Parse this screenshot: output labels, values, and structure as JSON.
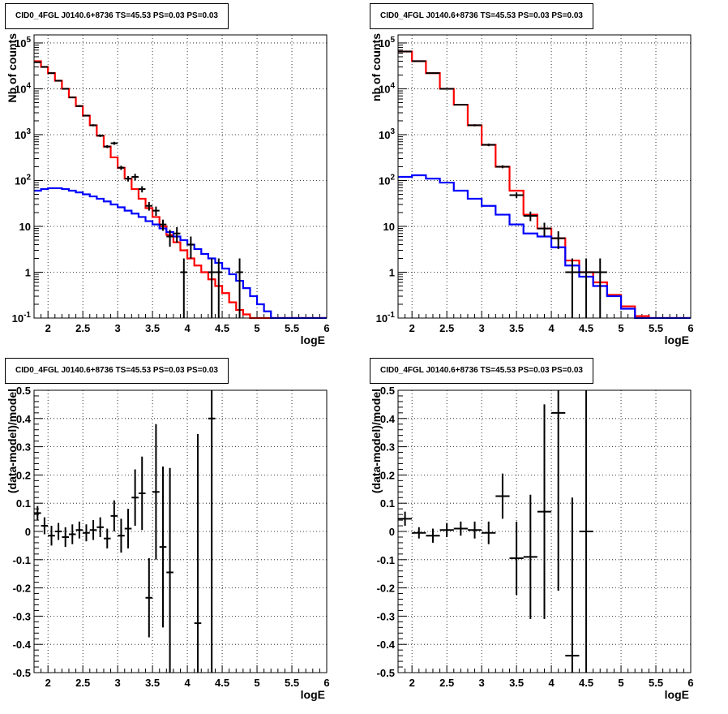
{
  "chart_data": [
    {
      "type": "step-histogram",
      "title": "CID0_4FGL J0140.6+8736 TS=45.53 PS=0.03 PS=0.03",
      "xlabel": "logE",
      "ylabel": "Nb of counts",
      "xlim": [
        1.8,
        6.0
      ],
      "ylim": [
        0.1,
        150000
      ],
      "yscale": "log",
      "grid": true,
      "x_ticks": [
        "2",
        "2.5",
        "3",
        "3.5",
        "4",
        "4.5",
        "5",
        "5.5",
        "6"
      ],
      "y_ticks": [
        "10^-1",
        "1",
        "10",
        "10^2",
        "10^3",
        "10^4",
        "10^5"
      ],
      "bin_edges": [
        1.8,
        1.9,
        2.0,
        2.1,
        2.2,
        2.3,
        2.4,
        2.5,
        2.6,
        2.7,
        2.8,
        2.9,
        3.0,
        3.1,
        3.2,
        3.3,
        3.4,
        3.5,
        3.6,
        3.7,
        3.8,
        3.9,
        4.0,
        4.1,
        4.2,
        4.3,
        4.4,
        4.5,
        4.6,
        4.7,
        4.8,
        4.9,
        5.0,
        5.1,
        5.2,
        5.3,
        5.4,
        5.5,
        5.6,
        5.7,
        5.8,
        5.9,
        6.0
      ],
      "series": [
        {
          "color": "#ff0000",
          "values": [
            40000,
            30000,
            22000,
            15000,
            10000,
            6500,
            4200,
            2600,
            1600,
            950,
            550,
            320,
            190,
            110,
            65,
            40,
            25,
            16,
            10,
            6.5,
            4.5,
            3.0,
            2.0,
            1.4,
            1.0,
            0.7,
            0.5,
            0.35,
            0.22,
            0.15,
            0.12,
            0.1,
            0.1,
            0.1,
            0.1,
            0.1,
            0.1,
            0.1,
            0.1,
            0.1,
            0.1,
            0.1
          ]
        },
        {
          "color": "#0000ff",
          "values": [
            60,
            65,
            68,
            68,
            65,
            60,
            55,
            50,
            45,
            40,
            35,
            30,
            26,
            22,
            19,
            16,
            13,
            11,
            9,
            7.5,
            6,
            5,
            4,
            3.2,
            2.5,
            2.0,
            1.6,
            1.2,
            0.9,
            0.65,
            0.45,
            0.3,
            0.2,
            0.14,
            0.1,
            0.1,
            0.1,
            0.1,
            0.1,
            0.1,
            0.1,
            0.1
          ]
        }
      ],
      "data_points": [
        {
          "x": 1.85,
          "y": 38000,
          "ylo": 37000,
          "yhi": 39000
        },
        {
          "x": 1.95,
          "y": 30000,
          "ylo": 29000,
          "yhi": 31000
        },
        {
          "x": 2.05,
          "y": 22000,
          "ylo": 21500,
          "yhi": 22500
        },
        {
          "x": 2.15,
          "y": 15000,
          "ylo": 14600,
          "yhi": 15400
        },
        {
          "x": 2.25,
          "y": 10000,
          "ylo": 9700,
          "yhi": 10300
        },
        {
          "x": 2.35,
          "y": 6500,
          "ylo": 6300,
          "yhi": 6700
        },
        {
          "x": 2.45,
          "y": 4200,
          "ylo": 4000,
          "yhi": 4400
        },
        {
          "x": 2.55,
          "y": 2600,
          "ylo": 2500,
          "yhi": 2700
        },
        {
          "x": 2.65,
          "y": 1600,
          "ylo": 1520,
          "yhi": 1680
        },
        {
          "x": 2.75,
          "y": 950,
          "ylo": 890,
          "yhi": 1010
        },
        {
          "x": 2.85,
          "y": 550,
          "ylo": 510,
          "yhi": 590
        },
        {
          "x": 2.95,
          "y": 650,
          "ylo": 600,
          "yhi": 700
        },
        {
          "x": 3.05,
          "y": 190,
          "ylo": 170,
          "yhi": 210
        },
        {
          "x": 3.15,
          "y": 110,
          "ylo": 95,
          "yhi": 125
        },
        {
          "x": 3.25,
          "y": 120,
          "ylo": 100,
          "yhi": 140
        },
        {
          "x": 3.35,
          "y": 65,
          "ylo": 55,
          "yhi": 75
        },
        {
          "x": 3.45,
          "y": 28,
          "ylo": 22,
          "yhi": 34
        },
        {
          "x": 3.55,
          "y": 22,
          "ylo": 17,
          "yhi": 27
        },
        {
          "x": 3.65,
          "y": 11,
          "ylo": 8,
          "yhi": 14
        },
        {
          "x": 3.75,
          "y": 6,
          "ylo": 3.6,
          "yhi": 8.4
        },
        {
          "x": 3.85,
          "y": 7,
          "ylo": 4.4,
          "yhi": 9.6
        },
        {
          "x": 3.95,
          "y": 1,
          "ylo": 0.1,
          "yhi": 2
        },
        {
          "x": 4.05,
          "y": 4,
          "ylo": 2,
          "yhi": 6
        },
        {
          "x": 4.35,
          "y": 1,
          "ylo": 0.1,
          "yhi": 2
        },
        {
          "x": 4.45,
          "y": 1,
          "ylo": 0.1,
          "yhi": 2
        },
        {
          "x": 4.75,
          "y": 1,
          "ylo": 0.1,
          "yhi": 2
        }
      ]
    },
    {
      "type": "step-histogram",
      "title": "CID0_4FGL J0140.6+8736 TS=45.53 PS=0.03 PS=0.03",
      "xlabel": "logE",
      "ylabel": "nb of counts",
      "xlim": [
        1.8,
        6.0
      ],
      "ylim": [
        0.1,
        150000
      ],
      "yscale": "log",
      "grid": true,
      "x_ticks": [
        "2",
        "2.5",
        "3",
        "3.5",
        "4",
        "4.5",
        "5",
        "5.5",
        "6"
      ],
      "y_ticks": [
        "10^-1",
        "1",
        "10",
        "10^2",
        "10^3",
        "10^4",
        "10^5"
      ],
      "bin_edges": [
        1.8,
        2.0,
        2.2,
        2.4,
        2.6,
        2.8,
        3.0,
        3.2,
        3.4,
        3.6,
        3.8,
        4.0,
        4.2,
        4.4,
        4.6,
        4.8,
        5.0,
        5.2,
        5.4,
        5.6,
        5.8,
        6.0
      ],
      "series": [
        {
          "color": "#ff0000",
          "values": [
            65000,
            40000,
            22000,
            10000,
            4500,
            1600,
            600,
            200,
            60,
            18,
            9,
            5.5,
            1.8,
            1.0,
            0.6,
            0.32,
            0.18,
            0.11,
            0.1,
            0.1,
            0.1
          ]
        },
        {
          "color": "#0000ff",
          "values": [
            120,
            130,
            110,
            90,
            60,
            40,
            28,
            18,
            11,
            7,
            6,
            3.5,
            1.4,
            0.8,
            0.5,
            0.3,
            0.16,
            0.1,
            0.1,
            0.1,
            0.1
          ]
        }
      ],
      "data_points": [
        {
          "x": 1.9,
          "y": 65000,
          "ylo": 64000,
          "yhi": 66000
        },
        {
          "x": 2.1,
          "y": 40000,
          "ylo": 39500,
          "yhi": 40500
        },
        {
          "x": 2.3,
          "y": 22000,
          "ylo": 21600,
          "yhi": 22400
        },
        {
          "x": 2.5,
          "y": 10000,
          "ylo": 9800,
          "yhi": 10200
        },
        {
          "x": 2.7,
          "y": 4500,
          "ylo": 4350,
          "yhi": 4650
        },
        {
          "x": 2.9,
          "y": 1600,
          "ylo": 1520,
          "yhi": 1680
        },
        {
          "x": 3.1,
          "y": 600,
          "ylo": 560,
          "yhi": 640
        },
        {
          "x": 3.3,
          "y": 200,
          "ylo": 185,
          "yhi": 215
        },
        {
          "x": 3.5,
          "y": 48,
          "ylo": 41,
          "yhi": 55
        },
        {
          "x": 3.7,
          "y": 17,
          "ylo": 13,
          "yhi": 21
        },
        {
          "x": 3.9,
          "y": 9,
          "ylo": 6,
          "yhi": 12
        },
        {
          "x": 4.1,
          "y": 5.5,
          "ylo": 3.2,
          "yhi": 7.8
        },
        {
          "x": 4.3,
          "y": 1,
          "ylo": 0.1,
          "yhi": 2
        },
        {
          "x": 4.5,
          "y": 1,
          "ylo": 0.1,
          "yhi": 2
        },
        {
          "x": 4.7,
          "y": 1,
          "ylo": 0.1,
          "yhi": 2
        }
      ]
    },
    {
      "type": "scatter-errorbar",
      "title": "CID0_4FGL J0140.6+8736 TS=45.53 PS=0.03 PS=0.03",
      "xlabel": "logE",
      "ylabel": "(data-model)/model",
      "xlim": [
        1.8,
        6.0
      ],
      "ylim": [
        -0.5,
        0.5
      ],
      "grid": true,
      "x_ticks": [
        "2",
        "2.5",
        "3",
        "3.5",
        "4",
        "4.5",
        "5",
        "5.5",
        "6"
      ],
      "y_ticks": [
        "-0.5",
        "-0.4",
        "-0.3",
        "-0.2",
        "-0.1",
        "0",
        "0.1",
        "0.2",
        "0.3",
        "0.4",
        "0.5"
      ],
      "x_halfwidth": 0.05,
      "points": [
        {
          "x": 1.85,
          "y": 0.065,
          "err": 0.025
        },
        {
          "x": 1.95,
          "y": 0.02,
          "err": 0.03
        },
        {
          "x": 2.05,
          "y": -0.015,
          "err": 0.035
        },
        {
          "x": 2.15,
          "y": 0.0,
          "err": 0.03
        },
        {
          "x": 2.25,
          "y": -0.02,
          "err": 0.035
        },
        {
          "x": 2.35,
          "y": -0.01,
          "err": 0.035
        },
        {
          "x": 2.45,
          "y": 0.005,
          "err": 0.03
        },
        {
          "x": 2.55,
          "y": -0.005,
          "err": 0.03
        },
        {
          "x": 2.65,
          "y": 0.005,
          "err": 0.035
        },
        {
          "x": 2.75,
          "y": 0.015,
          "err": 0.035
        },
        {
          "x": 2.85,
          "y": -0.025,
          "err": 0.035
        },
        {
          "x": 2.95,
          "y": 0.055,
          "err": 0.055
        },
        {
          "x": 3.05,
          "y": -0.015,
          "err": 0.06
        },
        {
          "x": 3.15,
          "y": 0.01,
          "err": 0.07
        },
        {
          "x": 3.25,
          "y": 0.12,
          "err": 0.1
        },
        {
          "x": 3.35,
          "y": 0.135,
          "err": 0.13
        },
        {
          "x": 3.45,
          "y": -0.235,
          "err": 0.14
        },
        {
          "x": 3.55,
          "y": 0.14,
          "err": 0.24
        },
        {
          "x": 3.65,
          "y": -0.055,
          "err": 0.285
        },
        {
          "x": 3.75,
          "y": -0.145,
          "err": 0.37
        },
        {
          "x": 4.15,
          "y": -0.325,
          "err": 0.67
        },
        {
          "x": 4.35,
          "y": 0.4,
          "err": 1.0
        }
      ]
    },
    {
      "type": "scatter-errorbar",
      "title": "CID0_4FGL J0140.6+8736 TS=45.53 PS=0.03 PS=0.03",
      "xlabel": "logE",
      "ylabel": "(data-model)/model",
      "xlim": [
        1.8,
        6.0
      ],
      "ylim": [
        -0.5,
        0.5
      ],
      "grid": true,
      "x_ticks": [
        "2",
        "2.5",
        "3",
        "3.5",
        "4",
        "4.5",
        "5",
        "5.5",
        "6"
      ],
      "y_ticks": [
        "-0.5",
        "-0.4",
        "-0.3",
        "-0.2",
        "-0.1",
        "0",
        "0.1",
        "0.2",
        "0.3",
        "0.4",
        "0.5"
      ],
      "x_halfwidth": 0.1,
      "points": [
        {
          "x": 1.9,
          "y": 0.045,
          "err": 0.025
        },
        {
          "x": 2.1,
          "y": -0.005,
          "err": 0.02
        },
        {
          "x": 2.3,
          "y": -0.015,
          "err": 0.025
        },
        {
          "x": 2.5,
          "y": 0.005,
          "err": 0.025
        },
        {
          "x": 2.7,
          "y": 0.01,
          "err": 0.025
        },
        {
          "x": 2.9,
          "y": 0.005,
          "err": 0.03
        },
        {
          "x": 3.1,
          "y": -0.005,
          "err": 0.04
        },
        {
          "x": 3.3,
          "y": 0.125,
          "err": 0.08
        },
        {
          "x": 3.5,
          "y": -0.095,
          "err": 0.13
        },
        {
          "x": 3.7,
          "y": -0.09,
          "err": 0.22
        },
        {
          "x": 3.9,
          "y": 0.07,
          "err": 0.38
        },
        {
          "x": 4.1,
          "y": 0.42,
          "err": 0.63
        },
        {
          "x": 4.3,
          "y": -0.44,
          "err": 0.56
        },
        {
          "x": 4.5,
          "y": 0.0,
          "err": 1.0
        }
      ]
    }
  ]
}
